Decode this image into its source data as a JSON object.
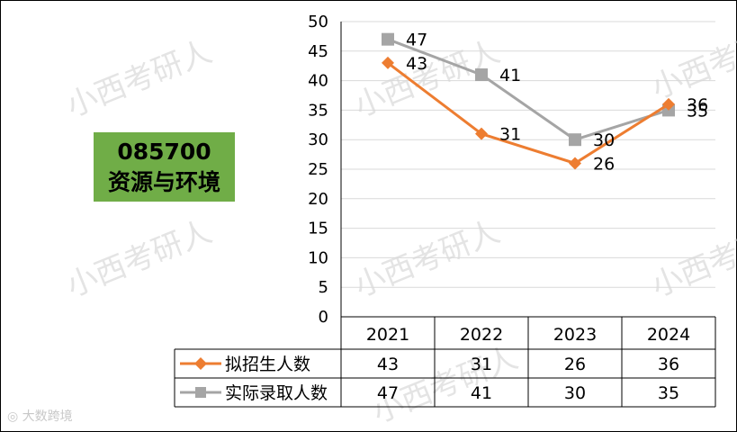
{
  "code_box": {
    "code": "085700",
    "name": "资源与环境"
  },
  "watermark": "小西考研人",
  "brand": "大数跨境",
  "chart_data": {
    "type": "line",
    "title": "",
    "xlabel": "",
    "ylabel": "",
    "categories": [
      "2021",
      "2022",
      "2023",
      "2024"
    ],
    "ylim": [
      0,
      50
    ],
    "yticks": [
      0,
      5,
      10,
      15,
      20,
      25,
      30,
      35,
      40,
      45,
      50
    ],
    "grid": true,
    "legend": "data-table",
    "series": [
      {
        "name": "拟招生人数",
        "values": [
          43,
          31,
          26,
          36
        ],
        "color": "#ed7d31",
        "marker": "diamond"
      },
      {
        "name": "实际录取人数",
        "values": [
          47,
          41,
          30,
          35
        ],
        "color": "#a5a5a5",
        "marker": "square"
      }
    ]
  }
}
